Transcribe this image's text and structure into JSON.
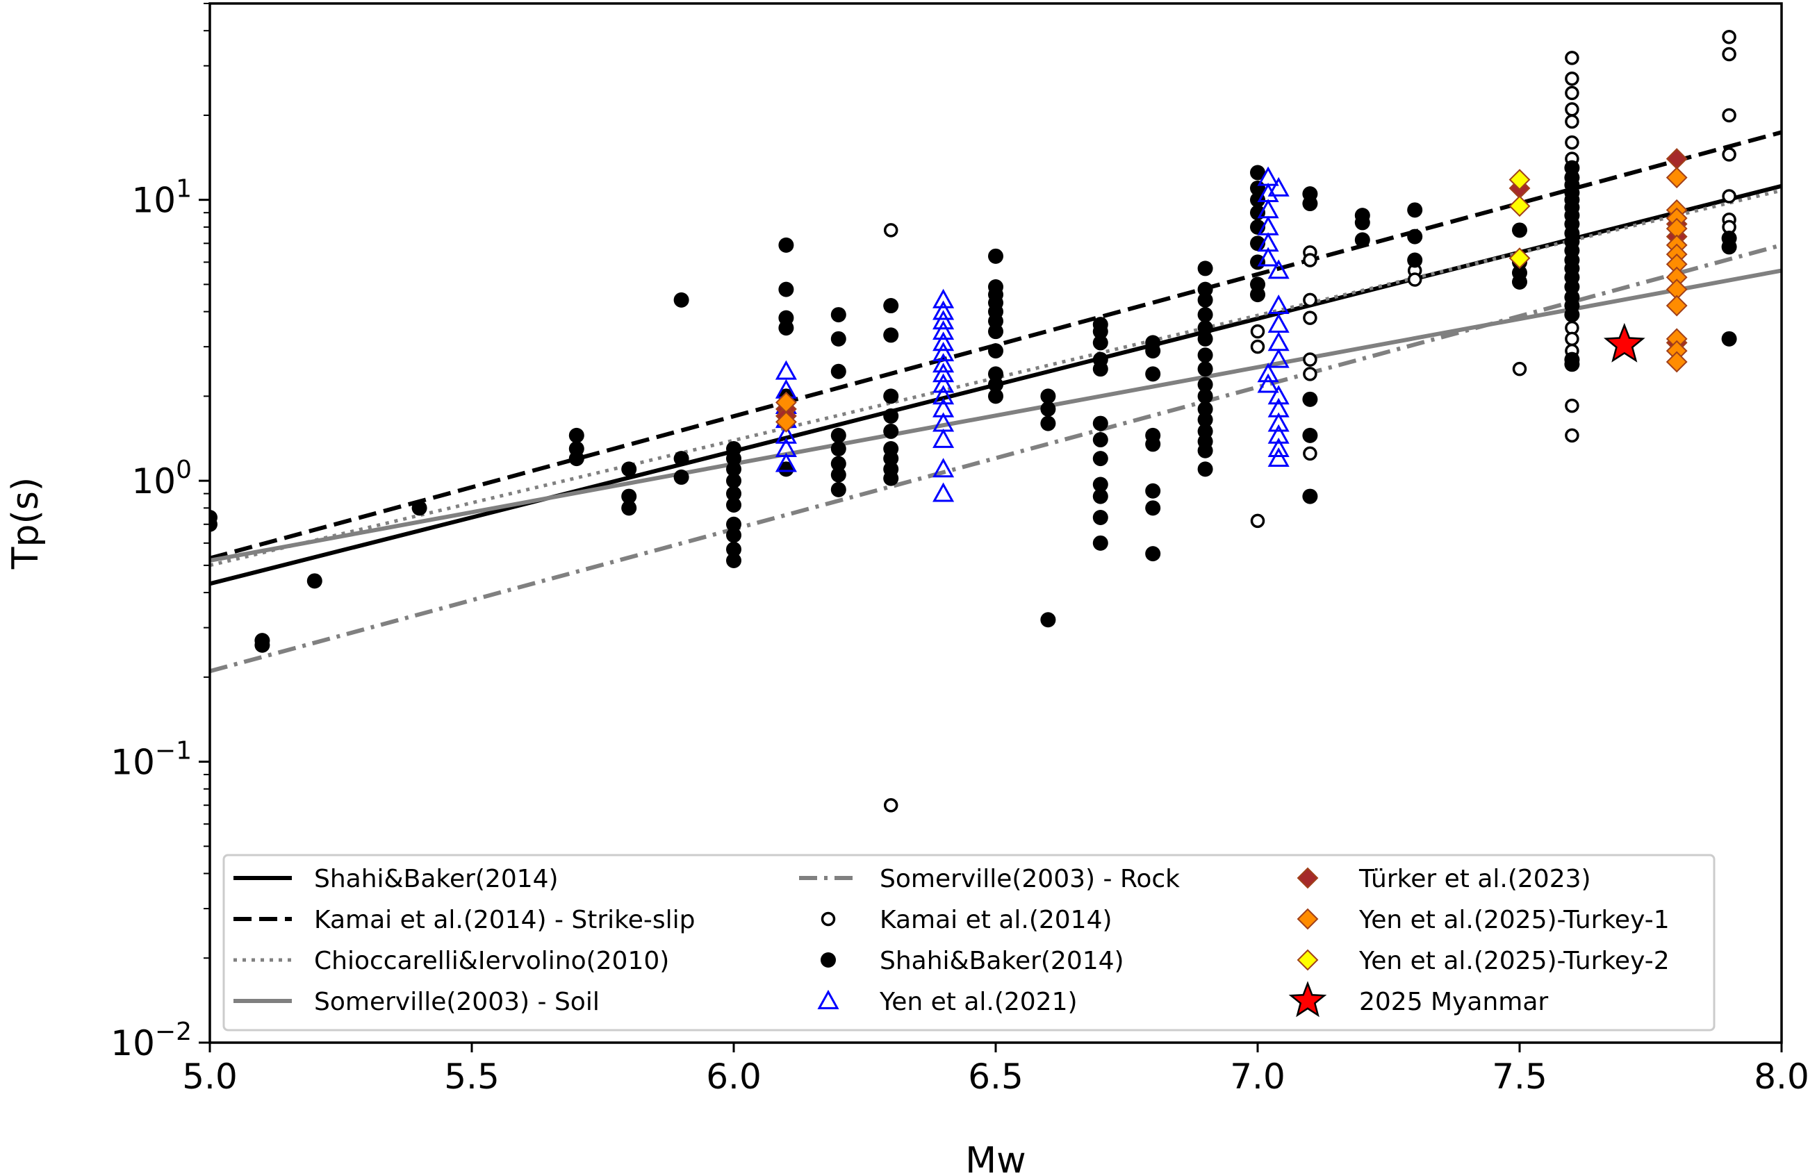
{
  "chart_data": {
    "type": "scatter",
    "xlabel": "Mw",
    "ylabel": "Tp(s)",
    "xlim": [
      5.0,
      8.0
    ],
    "ylim": [
      0.01,
      50
    ],
    "yscale": "log",
    "grid": false,
    "legend_position": "bottom",
    "x_ticks": [
      "5.0",
      "5.5",
      "6.0",
      "6.5",
      "7.0",
      "7.5",
      "8.0"
    ],
    "y_ticks": [
      {
        "base": "10",
        "exp": "−2",
        "value": 0.01
      },
      {
        "base": "10",
        "exp": "−1",
        "value": 0.1
      },
      {
        "base": "10",
        "exp": "0",
        "value": 1
      },
      {
        "base": "10",
        "exp": "1",
        "value": 10
      }
    ],
    "lines": [
      {
        "name": "Shahi&Baker(2014)",
        "style": "solid",
        "color": "#000000",
        "points": [
          [
            5.0,
            0.43
          ],
          [
            8.0,
            11.2
          ]
        ]
      },
      {
        "name": "Kamai et al.(2014) - Strike-slip",
        "style": "dashed",
        "color": "#000000",
        "points": [
          [
            5.0,
            0.53
          ],
          [
            8.0,
            17.4
          ]
        ]
      },
      {
        "name": "Chioccarelli&Iervolino(2010)",
        "style": "dotted",
        "color": "#808080",
        "points": [
          [
            5.0,
            0.5
          ],
          [
            8.0,
            10.8
          ]
        ]
      },
      {
        "name": "Somerville(2003) - Soil",
        "style": "solid",
        "color": "#808080",
        "points": [
          [
            5.0,
            0.52
          ],
          [
            8.0,
            5.6
          ]
        ]
      },
      {
        "name": "Somerville(2003) - Rock",
        "style": "dashdot",
        "color": "#808080",
        "points": [
          [
            5.0,
            0.21
          ],
          [
            8.0,
            6.9
          ]
        ]
      }
    ],
    "series": [
      {
        "name": "Kamai et al.(2014)",
        "marker": "open-circle",
        "color": "#000000",
        "points": [
          [
            6.3,
            7.8
          ],
          [
            6.3,
            0.07
          ],
          [
            7.0,
            0.72
          ],
          [
            7.0,
            3.4
          ],
          [
            7.0,
            3.0
          ],
          [
            7.1,
            6.5
          ],
          [
            7.1,
            6.1
          ],
          [
            7.1,
            4.4
          ],
          [
            7.1,
            3.8
          ],
          [
            7.1,
            2.7
          ],
          [
            7.1,
            2.4
          ],
          [
            7.1,
            1.25
          ],
          [
            7.3,
            5.6
          ],
          [
            7.3,
            5.2
          ],
          [
            7.5,
            2.5
          ],
          [
            7.6,
            32
          ],
          [
            7.6,
            27
          ],
          [
            7.6,
            24
          ],
          [
            7.6,
            21
          ],
          [
            7.6,
            19
          ],
          [
            7.6,
            16
          ],
          [
            7.6,
            14
          ],
          [
            7.6,
            12
          ],
          [
            7.6,
            3.5
          ],
          [
            7.6,
            3.2
          ],
          [
            7.6,
            2.9
          ],
          [
            7.6,
            2.6
          ],
          [
            7.6,
            1.85
          ],
          [
            7.6,
            1.45
          ],
          [
            7.9,
            38
          ],
          [
            7.9,
            33
          ],
          [
            7.9,
            20
          ],
          [
            7.9,
            14.5
          ],
          [
            7.9,
            10.3
          ],
          [
            7.9,
            8.5
          ],
          [
            7.9,
            8.0
          ]
        ]
      },
      {
        "name": "Shahi&Baker(2014)",
        "marker": "filled-circle",
        "color": "#000000",
        "points": [
          [
            5.0,
            0.74
          ],
          [
            5.0,
            0.7
          ],
          [
            5.1,
            0.27
          ],
          [
            5.1,
            0.26
          ],
          [
            5.2,
            0.44
          ],
          [
            5.4,
            0.8
          ],
          [
            5.7,
            1.45
          ],
          [
            5.7,
            1.3
          ],
          [
            5.7,
            1.2
          ],
          [
            5.8,
            1.1
          ],
          [
            5.8,
            0.88
          ],
          [
            5.8,
            0.8
          ],
          [
            5.9,
            4.4
          ],
          [
            5.9,
            1.2
          ],
          [
            5.9,
            1.03
          ],
          [
            6.0,
            1.3
          ],
          [
            6.0,
            1.2
          ],
          [
            6.0,
            1.1
          ],
          [
            6.0,
            1.0
          ],
          [
            6.0,
            0.9
          ],
          [
            6.0,
            0.82
          ],
          [
            6.0,
            0.7
          ],
          [
            6.0,
            0.64
          ],
          [
            6.0,
            0.57
          ],
          [
            6.0,
            0.52
          ],
          [
            6.1,
            6.9
          ],
          [
            6.1,
            4.8
          ],
          [
            6.1,
            3.8
          ],
          [
            6.1,
            3.5
          ],
          [
            6.1,
            2.0
          ],
          [
            6.1,
            1.9
          ],
          [
            6.1,
            1.75
          ],
          [
            6.1,
            1.1
          ],
          [
            6.2,
            3.9
          ],
          [
            6.2,
            3.2
          ],
          [
            6.2,
            2.45
          ],
          [
            6.2,
            1.45
          ],
          [
            6.2,
            1.3
          ],
          [
            6.2,
            1.15
          ],
          [
            6.2,
            1.05
          ],
          [
            6.2,
            0.93
          ],
          [
            6.3,
            4.2
          ],
          [
            6.3,
            3.3
          ],
          [
            6.3,
            2.0
          ],
          [
            6.3,
            1.7
          ],
          [
            6.3,
            1.5
          ],
          [
            6.3,
            1.3
          ],
          [
            6.3,
            1.2
          ],
          [
            6.3,
            1.1
          ],
          [
            6.3,
            1.02
          ],
          [
            6.5,
            6.3
          ],
          [
            6.5,
            4.9
          ],
          [
            6.5,
            4.6
          ],
          [
            6.5,
            4.3
          ],
          [
            6.5,
            4.0
          ],
          [
            6.5,
            3.7
          ],
          [
            6.5,
            3.4
          ],
          [
            6.5,
            2.9
          ],
          [
            6.5,
            2.4
          ],
          [
            6.5,
            2.2
          ],
          [
            6.5,
            2.0
          ],
          [
            6.6,
            2.0
          ],
          [
            6.6,
            1.8
          ],
          [
            6.6,
            1.6
          ],
          [
            6.6,
            0.32
          ],
          [
            6.7,
            3.6
          ],
          [
            6.7,
            3.4
          ],
          [
            6.7,
            3.1
          ],
          [
            6.7,
            2.7
          ],
          [
            6.7,
            2.5
          ],
          [
            6.7,
            1.6
          ],
          [
            6.7,
            1.4
          ],
          [
            6.7,
            1.2
          ],
          [
            6.7,
            0.97
          ],
          [
            6.7,
            0.88
          ],
          [
            6.7,
            0.74
          ],
          [
            6.7,
            0.6
          ],
          [
            6.8,
            3.1
          ],
          [
            6.8,
            2.9
          ],
          [
            6.8,
            2.4
          ],
          [
            6.8,
            1.45
          ],
          [
            6.8,
            1.35
          ],
          [
            6.8,
            0.92
          ],
          [
            6.8,
            0.8
          ],
          [
            6.8,
            0.55
          ],
          [
            6.9,
            5.7
          ],
          [
            6.9,
            4.8
          ],
          [
            6.9,
            4.4
          ],
          [
            6.9,
            3.9
          ],
          [
            6.9,
            3.5
          ],
          [
            6.9,
            3.2
          ],
          [
            6.9,
            2.8
          ],
          [
            6.9,
            2.5
          ],
          [
            6.9,
            2.2
          ],
          [
            6.9,
            2.0
          ],
          [
            6.9,
            1.8
          ],
          [
            6.9,
            1.65
          ],
          [
            6.9,
            1.5
          ],
          [
            6.9,
            1.38
          ],
          [
            6.9,
            1.28
          ],
          [
            6.9,
            1.1
          ],
          [
            7.0,
            12.5
          ],
          [
            7.0,
            11
          ],
          [
            7.0,
            10
          ],
          [
            7.0,
            9.0
          ],
          [
            7.0,
            8.0
          ],
          [
            7.0,
            7.0
          ],
          [
            7.0,
            6.0
          ],
          [
            7.0,
            5.0
          ],
          [
            7.0,
            4.6
          ],
          [
            7.1,
            10.5
          ],
          [
            7.1,
            9.7
          ],
          [
            7.1,
            1.95
          ],
          [
            7.1,
            1.45
          ],
          [
            7.1,
            0.88
          ],
          [
            7.2,
            8.8
          ],
          [
            7.2,
            8.3
          ],
          [
            7.2,
            7.2
          ],
          [
            7.3,
            9.2
          ],
          [
            7.3,
            7.4
          ],
          [
            7.3,
            6.1
          ],
          [
            7.5,
            7.8
          ],
          [
            7.5,
            6.0
          ],
          [
            7.5,
            5.5
          ],
          [
            7.5,
            5.1
          ],
          [
            7.6,
            13
          ],
          [
            7.6,
            12
          ],
          [
            7.6,
            11.3
          ],
          [
            7.6,
            10.6
          ],
          [
            7.6,
            10
          ],
          [
            7.6,
            9.4
          ],
          [
            7.6,
            8.8
          ],
          [
            7.6,
            8.2
          ],
          [
            7.6,
            7.6
          ],
          [
            7.6,
            7.1
          ],
          [
            7.6,
            6.6
          ],
          [
            7.6,
            6.1
          ],
          [
            7.6,
            5.7
          ],
          [
            7.6,
            5.3
          ],
          [
            7.6,
            4.9
          ],
          [
            7.6,
            4.5
          ],
          [
            7.6,
            4.2
          ],
          [
            7.6,
            3.9
          ],
          [
            7.6,
            2.7
          ],
          [
            7.6,
            2.6
          ],
          [
            7.9,
            7.3
          ],
          [
            7.9,
            6.8
          ],
          [
            7.9,
            3.2
          ]
        ]
      },
      {
        "name": "Yen et al.(2021)",
        "marker": "open-triangle",
        "color": "#0000ff",
        "points": [
          [
            6.1,
            2.45
          ],
          [
            6.1,
            2.1
          ],
          [
            6.1,
            1.85
          ],
          [
            6.1,
            1.65
          ],
          [
            6.1,
            1.45
          ],
          [
            6.1,
            1.3
          ],
          [
            6.1,
            1.15
          ],
          [
            6.4,
            4.4
          ],
          [
            6.4,
            4.0
          ],
          [
            6.4,
            3.7
          ],
          [
            6.4,
            3.4
          ],
          [
            6.4,
            3.1
          ],
          [
            6.4,
            2.85
          ],
          [
            6.4,
            2.6
          ],
          [
            6.4,
            2.4
          ],
          [
            6.4,
            2.2
          ],
          [
            6.4,
            2.0
          ],
          [
            6.4,
            1.8
          ],
          [
            6.4,
            1.6
          ],
          [
            6.4,
            1.4
          ],
          [
            6.4,
            1.1
          ],
          [
            6.4,
            0.9
          ],
          [
            7.02,
            12.0
          ],
          [
            7.02,
            10.5
          ],
          [
            7.02,
            9.2
          ],
          [
            7.02,
            8.0
          ],
          [
            7.02,
            7.0
          ],
          [
            7.02,
            6.2
          ],
          [
            7.02,
            2.4
          ],
          [
            7.02,
            2.2
          ],
          [
            7.04,
            11.0
          ],
          [
            7.04,
            5.6
          ],
          [
            7.04,
            4.2
          ],
          [
            7.04,
            3.6
          ],
          [
            7.04,
            3.1
          ],
          [
            7.04,
            2.7
          ],
          [
            7.04,
            2.0
          ],
          [
            7.04,
            1.8
          ],
          [
            7.04,
            1.6
          ],
          [
            7.04,
            1.45
          ],
          [
            7.04,
            1.3
          ],
          [
            7.04,
            1.2
          ]
        ]
      },
      {
        "name": "Türker et al.(2023)",
        "marker": "diamond",
        "color": "#a52a2a",
        "points": [
          [
            6.1,
            1.8
          ],
          [
            6.1,
            1.7
          ],
          [
            7.5,
            11
          ],
          [
            7.8,
            14
          ],
          [
            7.8,
            8.2
          ],
          [
            7.8,
            7.4
          ],
          [
            7.8,
            3.1
          ]
        ]
      },
      {
        "name": "Yen et al.(2025)-Turkey-1",
        "marker": "diamond",
        "color": "#ff8c00",
        "points": [
          [
            6.1,
            1.9
          ],
          [
            6.1,
            1.62
          ],
          [
            7.8,
            12
          ],
          [
            7.8,
            9.2
          ],
          [
            7.8,
            8.6
          ],
          [
            7.8,
            7.9
          ],
          [
            7.8,
            6.9
          ],
          [
            7.8,
            6.4
          ],
          [
            7.8,
            5.9
          ],
          [
            7.8,
            5.3
          ],
          [
            7.8,
            4.8
          ],
          [
            7.8,
            4.2
          ],
          [
            7.8,
            3.2
          ],
          [
            7.8,
            2.9
          ],
          [
            7.8,
            2.65
          ]
        ]
      },
      {
        "name": "Yen et al.(2025)-Turkey-2",
        "marker": "diamond",
        "color": "#ffff00",
        "points": [
          [
            7.5,
            11.8
          ],
          [
            7.5,
            9.5
          ],
          [
            7.5,
            6.2
          ]
        ]
      },
      {
        "name": "2025 Myanmar",
        "marker": "star",
        "color": "#ff0000",
        "points": [
          [
            7.7,
            3.05
          ]
        ]
      }
    ],
    "legend": [
      {
        "label": "Shahi&Baker(2014)",
        "symbol": "line-solid",
        "color": "#000000"
      },
      {
        "label": "Kamai et al.(2014) - Strike-slip",
        "symbol": "line-dashed",
        "color": "#000000"
      },
      {
        "label": "Chioccarelli&Iervolino(2010)",
        "symbol": "line-dotted",
        "color": "#808080"
      },
      {
        "label": "Somerville(2003) - Soil",
        "symbol": "line-solid",
        "color": "#808080"
      },
      {
        "label": "Somerville(2003) - Rock",
        "symbol": "line-dashdot",
        "color": "#808080"
      },
      {
        "label": "Kamai et al.(2014)",
        "symbol": "open-circle",
        "color": "#000000"
      },
      {
        "label": "Shahi&Baker(2014)",
        "symbol": "filled-circle",
        "color": "#000000"
      },
      {
        "label": "Yen et al.(2021)",
        "symbol": "open-triangle",
        "color": "#0000ff"
      },
      {
        "label": "Türker et al.(2023)",
        "symbol": "diamond",
        "color": "#a52a2a"
      },
      {
        "label": "Yen et al.(2025)-Turkey-1",
        "symbol": "diamond",
        "color": "#ff8c00"
      },
      {
        "label": "Yen et al.(2025)-Turkey-2",
        "symbol": "diamond",
        "color": "#ffff00"
      },
      {
        "label": "2025 Myanmar",
        "symbol": "star",
        "color": "#ff0000"
      }
    ]
  }
}
